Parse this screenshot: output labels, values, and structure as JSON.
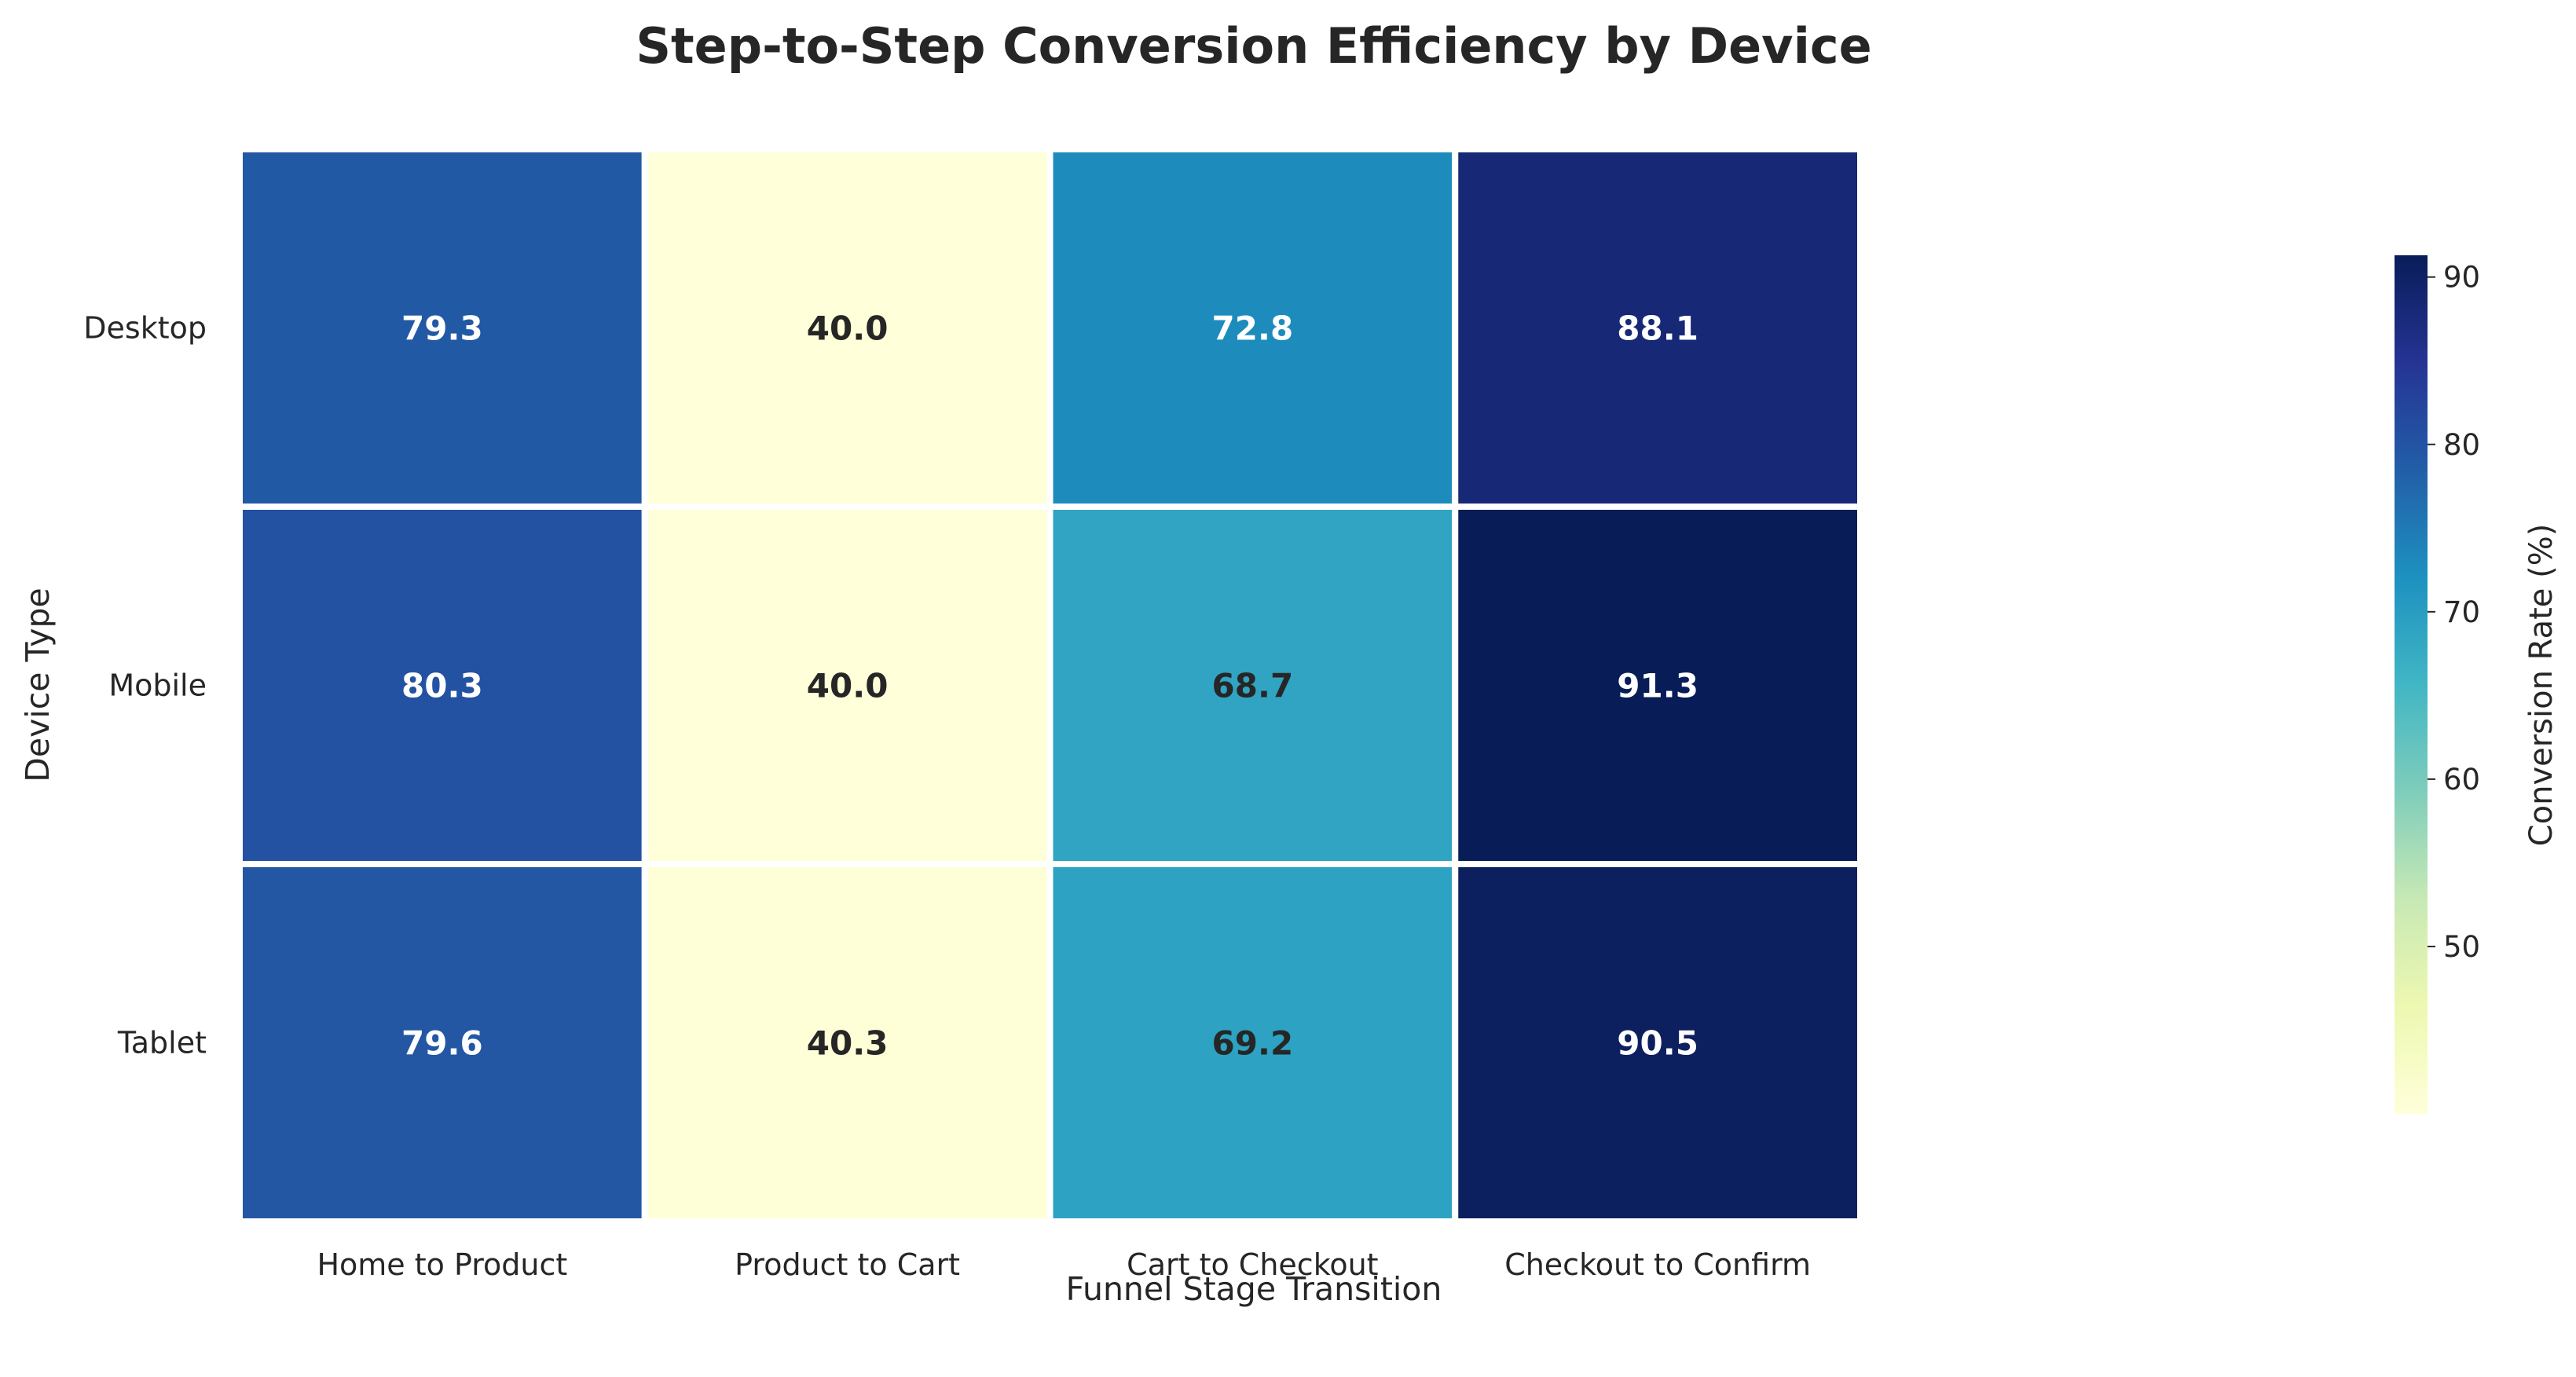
{
  "chart_data": {
    "type": "heatmap",
    "title": "Step-to-Step Conversion Efficiency by Device",
    "xlabel": "Funnel Stage Transition",
    "ylabel": "Device Type",
    "x_categories": [
      "Home to Product",
      "Product to Cart",
      "Cart to Checkout",
      "Checkout to Confirm"
    ],
    "y_categories": [
      "Desktop",
      "Mobile",
      "Tablet"
    ],
    "values": [
      [
        79.3,
        40.0,
        72.8,
        88.1
      ],
      [
        80.3,
        40.0,
        68.7,
        91.3
      ],
      [
        79.6,
        40.3,
        69.2,
        90.5
      ]
    ],
    "value_labels": [
      [
        "79.3",
        "40.0",
        "72.8",
        "88.1"
      ],
      [
        "80.3",
        "40.0",
        "68.7",
        "91.3"
      ],
      [
        "79.6",
        "40.3",
        "69.2",
        "90.5"
      ]
    ],
    "colorbar": {
      "label": "Conversion Rate (%)",
      "range": [
        40.0,
        91.3
      ],
      "ticks": [
        50,
        60,
        70,
        80,
        90
      ],
      "tick_labels": [
        "50",
        "60",
        "70",
        "80",
        "90"
      ],
      "colormap": "YlGnBu",
      "placement": "right"
    },
    "grid": false
  }
}
